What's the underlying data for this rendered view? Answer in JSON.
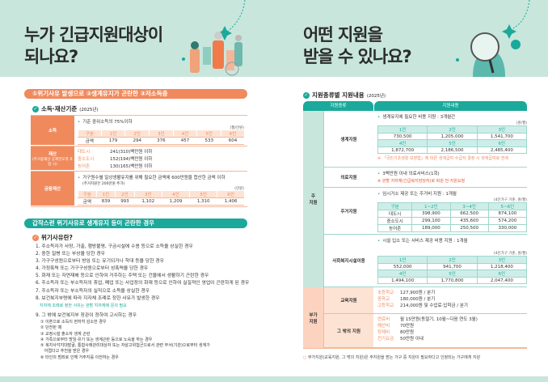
{
  "left": {
    "title_line1": "누가 긴급지원대상이",
    "title_line2": "되나요?",
    "banner1": "①위기사유 발생으로 ②생계유지가 곤란한 ③저소득층",
    "criteria_heading": "소득·재산기준",
    "criteria_year": "(2025년)",
    "income": {
      "label": "소득",
      "bullet": "기준 중위소득의 75%이하",
      "unit": "(월/만원)",
      "header": [
        "구분",
        "1인",
        "2인",
        "3인",
        "4인",
        "5인",
        "6인"
      ],
      "row": [
        "금액",
        "179",
        "294",
        "376",
        "457",
        "533",
        "604"
      ]
    },
    "property": {
      "label": "재산",
      "label_note": "(주거용재산 공제한도액 포함 시)",
      "items": [
        {
          "k": "대도시",
          "v": "241(310)백만원 이하"
        },
        {
          "k": "중소도시",
          "v": "152(194)백만원 이하"
        },
        {
          "k": "농어촌",
          "v": "130(165)백만원 이하"
        }
      ]
    },
    "financial": {
      "label": "금융재산",
      "bullet": "가구원수별 일상생활유지를 위해 필요한 금액에 600만원을 합산한 금액 이하",
      "note": "(주거지원은 200만원 추가)",
      "unit": "(만원)",
      "header": [
        "구분",
        "1인",
        "2인",
        "3인",
        "4인",
        "5인",
        "6인"
      ],
      "row": [
        "금액",
        "839",
        "993",
        "1,102",
        "1,209",
        "1,310",
        "1,406"
      ]
    },
    "banner2": "갑작스런 위기사유로 생계유지 등이 곤란한 경우",
    "crisis_heading": "위기사유란?",
    "crisis_items": [
      "1. 주소득자가 사망, 가출, 행방불명, 구금시설에 수용 등으로 소득을 상실한 경우",
      "2. 중한 질병 또는 부상을 당한 경우",
      "3. 가구구성원으로부터 방임 또는 유기되거나 학대 등을 당한 경우",
      "4. 가정폭력 또는 가구구성원으로부터 성폭력을 당한 경우",
      "5. 화재 또는 자연재해 등으로 인하여 거주하는 주택 또는 건물에서 생활하기 곤란한 경우",
      "6. 주소득자 또는 부소득자의 휴업, 폐업 또는 사업장의 화재 등으로 인하여 실질적인 영업이 곤란하게 된 경우",
      "7. 주소득자 또는 부소득자의 실직으로 소득을 상실한 경우",
      "8. 보건복지부령에 따라 지자체 조례로 정한 사유가 발생한 경우"
    ],
    "crisis_note": "지자체 조례로 정한 사유는 관할 지자체에 문의 필요",
    "crisis_item9": "9. 그 밖에 보건복지부 장관이 정하여 고시하는 경우",
    "crisis_sub": [
      "① 이혼으로 소득이 현저히 감소한 경우",
      "② 단전된 때",
      "③ 교정시설 출소자 생계 곤란",
      "④ 가족으로부터 방임·유기 또는 생계곤란 등으로 노숙을 하는 경우",
      "⑤ 복지사각지대발굴, 통합사례관리대상자 또는 자살고위험군으로서 관련 부서(기관)으로부터 생계가",
      "   어렵다고 추천을 받은 경우",
      "⑥ 타인의 범죄로 인해 거주지를 이전하는 경우"
    ]
  },
  "right": {
    "title_line1": "어떤 지원을",
    "title_line2": "받을 수 있나요?",
    "heading": "지원종류별 지원내용",
    "year": "(2025년)",
    "col_type": "지원종류",
    "col_content": "지원내용",
    "main_label": "주\n지원",
    "extra_label": "부가\n지원",
    "living": {
      "label": "생계지원",
      "bullet": "생계유지에 필요한 비용 지원 : 3개월간",
      "unit": "(원/월)",
      "rows": [
        [
          "1인",
          "2인",
          "3인"
        ],
        [
          "730,500",
          "1,205,000",
          "1,541,700"
        ],
        [
          "4인",
          "5인",
          "6인"
        ],
        [
          "1,872,700",
          "2,186,500",
          "2,485,400"
        ]
      ],
      "note": "※ 「국민기초생활 보장법」에 따른 생계급여 수급자 결정 시 생계급여로 연계"
    },
    "medical": {
      "label": "의료지원",
      "bullet": "3백만원 이내 의료서비스(1회)",
      "note": "※ 관할 지자체(긴급복지담당자)로 퇴원 전 지원요청"
    },
    "housing": {
      "label": "주거지원",
      "bullet": "임시거소 제공 또는 주거비 지원 : 1개월",
      "unit": "(4인가구 기준, 원/월)",
      "rows": [
        [
          "구분",
          "1~2인",
          "3~4인",
          "5~6인"
        ],
        [
          "대도시",
          "398,900",
          "662,500",
          "874,100"
        ],
        [
          "중소도시",
          "299,100",
          "435,600",
          "574,200"
        ],
        [
          "농어촌",
          "189,000",
          "250,500",
          "330,000"
        ]
      ]
    },
    "welfare": {
      "label": "사회복지시설이용",
      "bullet": "시설 입소 또는 서비스 제공 비용 지원 : 1개월",
      "unit": "(4인가구 기준, 원/월)",
      "rows": [
        [
          "1인",
          "2인",
          "3인"
        ],
        [
          "552,000",
          "941,700",
          "1,218,400"
        ],
        [
          "4인",
          "5인",
          "6인"
        ],
        [
          "1,494,100",
          "1,770,800",
          "2,047,400"
        ]
      ]
    },
    "education": {
      "label": "교육지원",
      "items": [
        {
          "k": "초등학교",
          "v": "127,900원 / 분기"
        },
        {
          "k": "중학교",
          "v": "180,000원 / 분기"
        },
        {
          "k": "고등학교",
          "v": "214,000원 및 수업료·입학금 / 분기"
        }
      ]
    },
    "other": {
      "label": "그 밖의 지원",
      "items": [
        {
          "k": "연료비",
          "v": "월 15만원(동절기, 10월~다음 연도 3월)"
        },
        {
          "k": "해산비",
          "v": "70만원"
        },
        {
          "k": "장제비",
          "v": "80만원"
        },
        {
          "k": "전기요금",
          "v": "50만원 이내"
        }
      ]
    },
    "footnote": "부가지원(교육지원, 그 밖의 지원)은 주지원을 받는 가구 중 지원이 필요하다고 인정되는 가구에게 지원"
  },
  "colors": {
    "mint": "#c8e6dc",
    "orange": "#f08a5d",
    "teal": "#1aa99a"
  }
}
